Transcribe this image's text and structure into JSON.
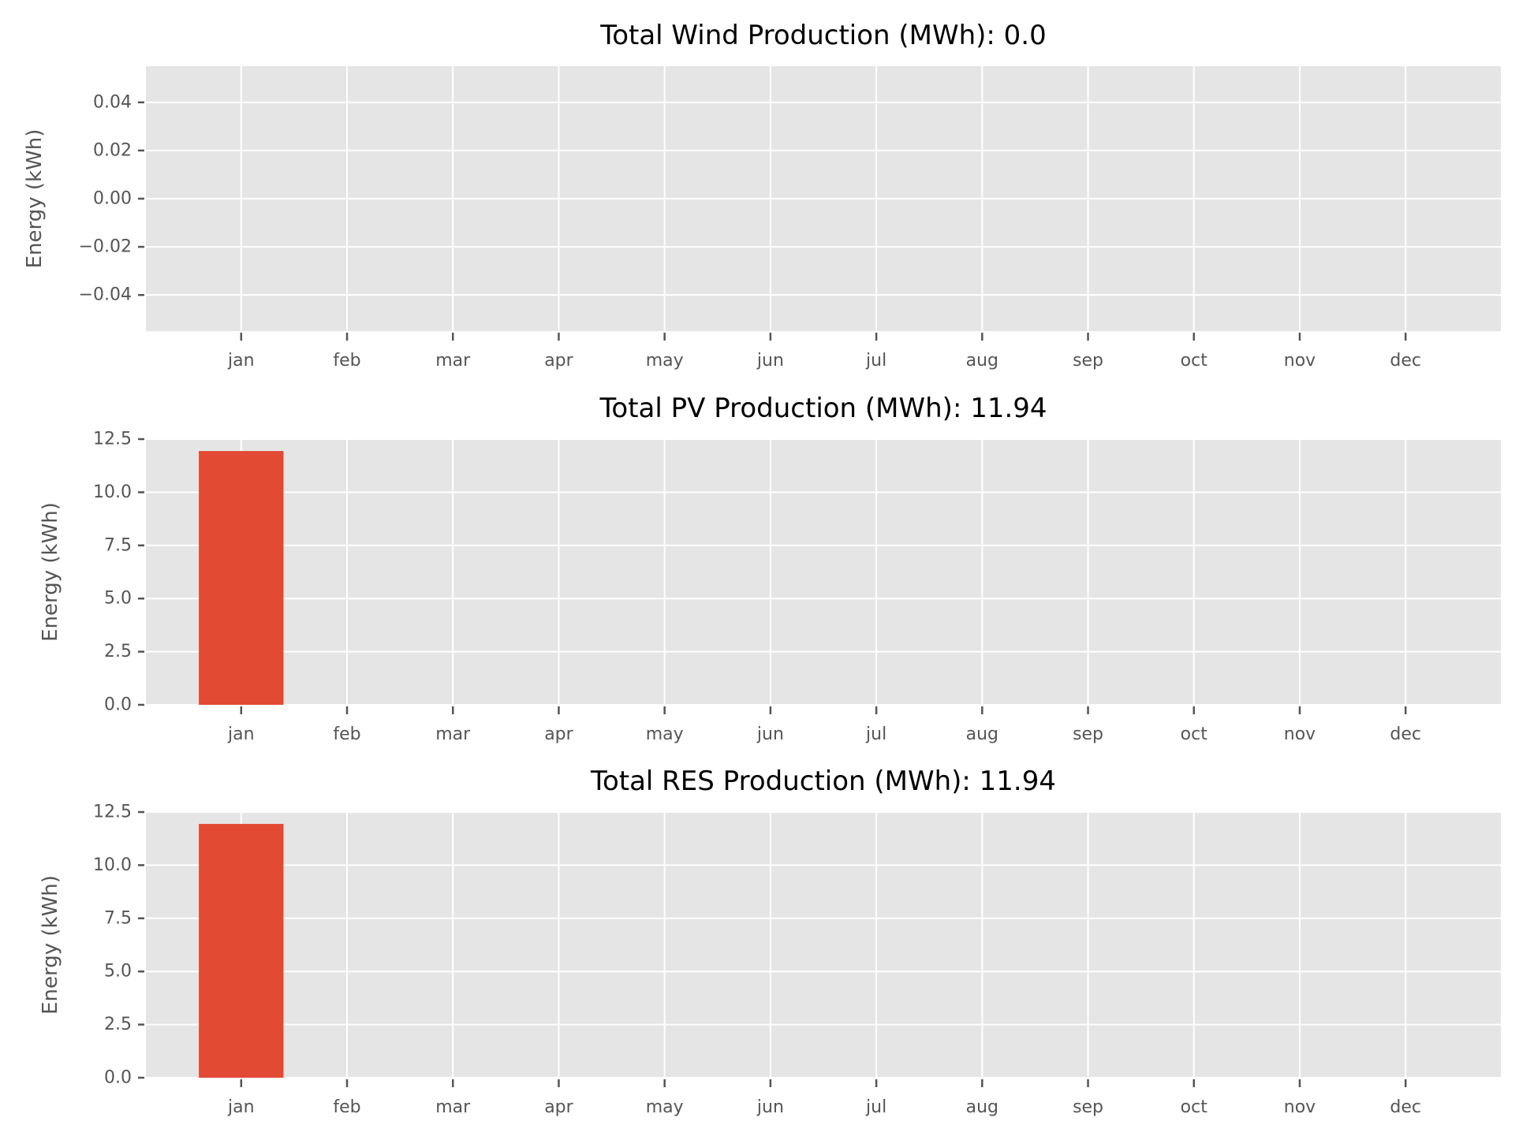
{
  "chart_data": [
    {
      "type": "bar",
      "title": "Total Wind Production (MWh): 0.0",
      "ylabel": "Energy (kWh)",
      "xlabel": "",
      "categories": [
        "jan",
        "feb",
        "mar",
        "apr",
        "may",
        "jun",
        "jul",
        "aug",
        "sep",
        "oct",
        "nov",
        "dec"
      ],
      "values": [
        0,
        0,
        0,
        0,
        0,
        0,
        0,
        0,
        0,
        0,
        0,
        0
      ],
      "ylim": [
        -0.055,
        0.055
      ],
      "yticks": [
        -0.04,
        -0.02,
        0.0,
        0.02,
        0.04
      ],
      "ytick_labels": [
        "−0.04",
        "−0.02",
        "0.00",
        "0.02",
        "0.04"
      ],
      "grid": true
    },
    {
      "type": "bar",
      "title": "Total PV Production (MWh): 11.94",
      "ylabel": "Energy (kWh)",
      "xlabel": "",
      "categories": [
        "jan",
        "feb",
        "mar",
        "apr",
        "may",
        "jun",
        "jul",
        "aug",
        "sep",
        "oct",
        "nov",
        "dec"
      ],
      "values": [
        11.94,
        0,
        0,
        0,
        0,
        0,
        0,
        0,
        0,
        0,
        0,
        0
      ],
      "ylim": [
        0,
        12.5
      ],
      "yticks": [
        0.0,
        2.5,
        5.0,
        7.5,
        10.0,
        12.5
      ],
      "ytick_labels": [
        "0.0",
        "2.5",
        "5.0",
        "7.5",
        "10.0",
        "12.5"
      ],
      "grid": true
    },
    {
      "type": "bar",
      "title": "Total RES Production (MWh): 11.94",
      "ylabel": "Energy (kWh)",
      "xlabel": "",
      "categories": [
        "jan",
        "feb",
        "mar",
        "apr",
        "may",
        "jun",
        "jul",
        "aug",
        "sep",
        "oct",
        "nov",
        "dec"
      ],
      "values": [
        11.94,
        0,
        0,
        0,
        0,
        0,
        0,
        0,
        0,
        0,
        0,
        0
      ],
      "ylim": [
        0,
        12.5
      ],
      "yticks": [
        0.0,
        2.5,
        5.0,
        7.5,
        10.0,
        12.5
      ],
      "ytick_labels": [
        "0.0",
        "2.5",
        "5.0",
        "7.5",
        "10.0",
        "12.5"
      ],
      "grid": true
    }
  ],
  "colors": {
    "bar": "#e24a33",
    "plot_background": "#e5e5e5",
    "grid": "#ffffff",
    "tick": "#555555"
  }
}
